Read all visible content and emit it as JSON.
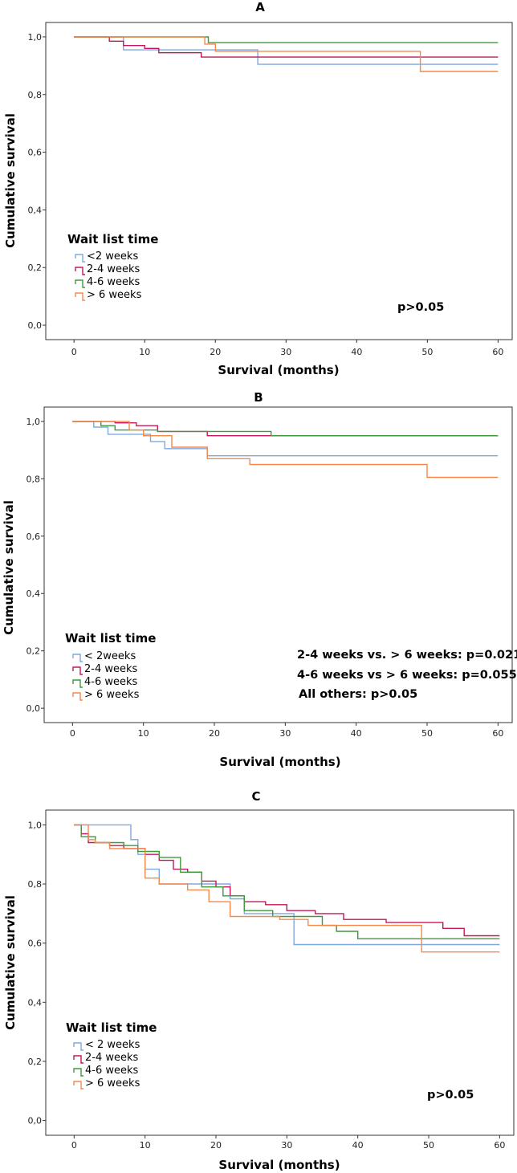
{
  "chart_data": [
    {
      "type": "line",
      "subtype": "kaplan-meier-step",
      "title": "A",
      "xlabel": "Survival (months)",
      "ylabel": "Cumulative survival",
      "xlim": [
        -4,
        62
      ],
      "ylim": [
        -0.05,
        1.05
      ],
      "xticks": [
        0,
        10,
        20,
        30,
        40,
        50,
        60
      ],
      "yticks": [
        0.0,
        0.2,
        0.4,
        0.6,
        0.8,
        1.0
      ],
      "ytick_labels": [
        "0,0",
        "0,2",
        "0,4",
        "0,6",
        "0,8",
        "1,0"
      ],
      "legend_title": "Wait list time",
      "legend_position": "bottom-left",
      "annotations": [
        "p>0.05"
      ],
      "series": [
        {
          "name": "<2 weeks",
          "color": "#7fa8e0",
          "x": [
            0,
            7,
            26,
            60
          ],
          "y": [
            1.0,
            0.955,
            0.905,
            0.905
          ]
        },
        {
          "name": "2-4 weeks",
          "color": "#c2185b",
          "x": [
            0,
            5,
            7,
            10,
            12,
            18,
            26,
            60
          ],
          "y": [
            1.0,
            0.985,
            0.97,
            0.96,
            0.945,
            0.93,
            0.93,
            0.93
          ]
        },
        {
          "name": "4-6 weeks",
          "color": "#3c9a3c",
          "x": [
            0,
            19,
            60
          ],
          "y": [
            1.0,
            0.98,
            0.98
          ]
        },
        {
          "name": "> 6 weeks",
          "color": "#f5894a",
          "x": [
            0,
            18.5,
            20,
            49,
            60
          ],
          "y": [
            1.0,
            0.975,
            0.95,
            0.88,
            0.88
          ]
        }
      ]
    },
    {
      "type": "line",
      "subtype": "kaplan-meier-step",
      "title": "B",
      "xlabel": "Survival (months)",
      "ylabel": "Cumulative survival",
      "xlim": [
        -4,
        62
      ],
      "ylim": [
        -0.05,
        1.05
      ],
      "xticks": [
        0,
        10,
        20,
        30,
        40,
        50,
        60
      ],
      "yticks": [
        0.0,
        0.2,
        0.4,
        0.6,
        0.8,
        1.0
      ],
      "ytick_labels": [
        "0,0",
        "0,2",
        "0,4",
        "0,6",
        "0,8",
        "1,0"
      ],
      "legend_title": "Wait list time",
      "legend_position": "bottom-left",
      "annotations": [
        "2-4 weeks vs. > 6 weeks: p=0.021",
        "4-6 weeks vs > 6 weeks: p=0.055",
        "All others: p>0.05"
      ],
      "series": [
        {
          "name": "< 2weeks",
          "color": "#7fa8e0",
          "x": [
            0,
            3,
            5,
            11,
            13,
            19,
            60
          ],
          "y": [
            1.0,
            0.98,
            0.955,
            0.93,
            0.905,
            0.88,
            0.88
          ]
        },
        {
          "name": "2-4 weeks",
          "color": "#c2185b",
          "x": [
            0,
            6,
            9,
            12,
            19,
            60
          ],
          "y": [
            1.0,
            0.995,
            0.985,
            0.965,
            0.95,
            0.95
          ]
        },
        {
          "name": "4-6 weeks",
          "color": "#3c9a3c",
          "x": [
            0,
            4,
            6,
            12,
            28,
            60
          ],
          "y": [
            1.0,
            0.985,
            0.97,
            0.965,
            0.95,
            0.95
          ]
        },
        {
          "name": "> 6 weeks",
          "color": "#f5894a",
          "x": [
            0,
            8,
            10,
            14,
            19,
            25,
            50,
            60
          ],
          "y": [
            1.0,
            0.97,
            0.95,
            0.91,
            0.87,
            0.85,
            0.805,
            0.805
          ]
        }
      ]
    },
    {
      "type": "line",
      "subtype": "kaplan-meier-step",
      "title": "C",
      "xlabel": "Survival (months)",
      "ylabel": "Cumulative survival",
      "xlim": [
        -4,
        62
      ],
      "ylim": [
        -0.05,
        1.05
      ],
      "xticks": [
        0,
        10,
        20,
        30,
        40,
        50,
        60
      ],
      "yticks": [
        0.0,
        0.2,
        0.4,
        0.6,
        0.8,
        1.0
      ],
      "ytick_labels": [
        "0,0",
        "0,2",
        "0,4",
        "0,6",
        "0,8",
        "1,0"
      ],
      "legend_title": "Wait list time",
      "legend_position": "bottom-left",
      "annotations": [
        "p>0.05"
      ],
      "series": [
        {
          "name": "< 2 weeks",
          "color": "#7fa8e0",
          "x": [
            0,
            8,
            9,
            10,
            12,
            18,
            22,
            24,
            26,
            29,
            31,
            60
          ],
          "y": [
            1.0,
            0.95,
            0.9,
            0.85,
            0.8,
            0.8,
            0.75,
            0.7,
            0.7,
            0.7,
            0.595,
            0.595
          ]
        },
        {
          "name": "2-4 weeks",
          "color": "#c2185b",
          "x": [
            0,
            1,
            2,
            5,
            7,
            10,
            12,
            14,
            16,
            18,
            20,
            22,
            24,
            27,
            30,
            34,
            38,
            44,
            48,
            52,
            55,
            60
          ],
          "y": [
            1.0,
            0.97,
            0.94,
            0.93,
            0.92,
            0.9,
            0.88,
            0.85,
            0.84,
            0.81,
            0.79,
            0.76,
            0.74,
            0.73,
            0.71,
            0.7,
            0.68,
            0.67,
            0.67,
            0.65,
            0.625,
            0.625
          ]
        },
        {
          "name": "4-6 weeks",
          "color": "#3c9a3c",
          "x": [
            0,
            1,
            3,
            7,
            9,
            12,
            15,
            18,
            21,
            24,
            28,
            35,
            37,
            40,
            56,
            60
          ],
          "y": [
            1.0,
            0.96,
            0.94,
            0.93,
            0.91,
            0.89,
            0.84,
            0.79,
            0.76,
            0.71,
            0.69,
            0.66,
            0.64,
            0.615,
            0.615,
            0.615
          ]
        },
        {
          "name": "> 6 weeks",
          "color": "#f5894a",
          "x": [
            0,
            2,
            3,
            5,
            10,
            12,
            16,
            19,
            22,
            29,
            33,
            49,
            60
          ],
          "y": [
            1.0,
            0.95,
            0.94,
            0.92,
            0.82,
            0.8,
            0.78,
            0.74,
            0.69,
            0.68,
            0.66,
            0.57,
            0.57
          ]
        }
      ]
    }
  ]
}
